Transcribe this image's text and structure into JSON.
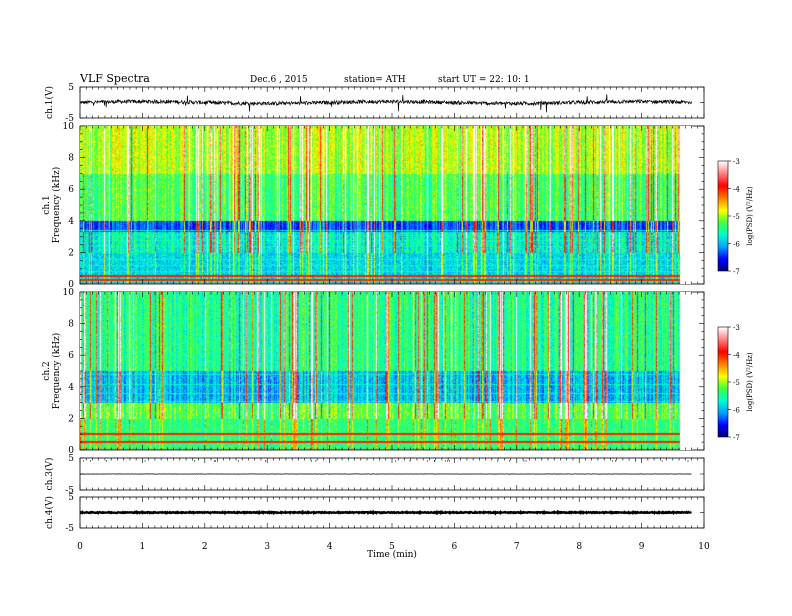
{
  "header": {
    "title": "VLF  Spectra",
    "date": "Dec.6  , 2015",
    "station": "station= ATH",
    "start": "start  UT  =    22: 10: 1"
  },
  "chart_data": [
    {
      "type": "line",
      "panel": "ch1-waveform",
      "ylabel": "ch.1(V)",
      "ylim": [
        -5,
        5
      ],
      "yticks": [
        "5",
        "-5"
      ],
      "xlim": [
        0,
        10
      ],
      "mean_level": 0,
      "noise_amplitude": 0.6
    },
    {
      "type": "heatmap",
      "panel": "ch1-spectrogram",
      "ylabel": "ch.1\nFrequency (kHz)",
      "ylabel_lines": [
        "ch.1",
        "Frequency (kHz)"
      ],
      "ylim": [
        0,
        10
      ],
      "yticks": [
        "0",
        "2",
        "4",
        "6",
        "8",
        "10"
      ],
      "xlim": [
        0,
        10
      ],
      "data_end_min": 9.8,
      "colorbar": {
        "label": "log(PSD) (V²/Hz)",
        "range": [
          -7,
          -3
        ],
        "ticks": [
          "-3",
          "-4",
          "-5",
          "-6",
          "-7"
        ]
      },
      "horizontal_lines_khz": [
        0.2,
        0.5,
        0.8,
        1.2,
        1.6,
        2.4,
        2.8,
        3.1,
        3.4,
        6.0,
        6.8
      ],
      "strong_lines_khz": [
        0.3,
        0.6
      ]
    },
    {
      "type": "heatmap",
      "panel": "ch2-spectrogram",
      "ylabel": "ch.2\nFrequency (kHz)",
      "ylabel_lines": [
        "ch.2",
        "Frequency (kHz)"
      ],
      "ylim": [
        0,
        10
      ],
      "yticks": [
        "0",
        "2",
        "4",
        "6",
        "8",
        "10"
      ],
      "xlim": [
        0,
        10
      ],
      "data_end_min": 9.8,
      "colorbar": {
        "label": "log(PSD) (V²/Hz)",
        "range": [
          -7,
          -3
        ],
        "ticks": [
          "-3",
          "-4",
          "-5",
          "-6",
          "-7"
        ]
      },
      "horizontal_lines_khz": [
        0.5,
        1.2,
        1.5,
        2.2,
        2.4,
        3.1,
        3.6,
        4.2,
        4.8,
        6.0
      ],
      "strong_lines_khz": [
        0.6,
        1.1
      ]
    },
    {
      "type": "line",
      "panel": "ch3-waveform",
      "ylabel": "ch.3(V)",
      "ylim": [
        -5,
        5
      ],
      "yticks": [
        "5",
        "-5"
      ],
      "xlim": [
        0,
        10
      ],
      "mean_level": 0,
      "noise_amplitude": 0.05
    },
    {
      "type": "line",
      "panel": "ch4-waveform",
      "ylabel": "ch.4(V)",
      "ylim": [
        -5,
        5
      ],
      "yticks": [
        "5",
        "-5"
      ],
      "xlim": [
        0,
        10
      ],
      "mean_level": 0,
      "noise_amplitude": 0.15
    }
  ],
  "x_axis": {
    "label": "Time  (min)",
    "ticks": [
      "0",
      "1",
      "2",
      "3",
      "4",
      "5",
      "6",
      "7",
      "8",
      "9",
      "10"
    ],
    "range": [
      0,
      10
    ]
  },
  "colorbar_colors": [
    "#000070",
    "#0000ff",
    "#00a0ff",
    "#00ffd0",
    "#40ff40",
    "#ffff00",
    "#ff8000",
    "#ff0000",
    "#ff8080",
    "#ffffff"
  ]
}
